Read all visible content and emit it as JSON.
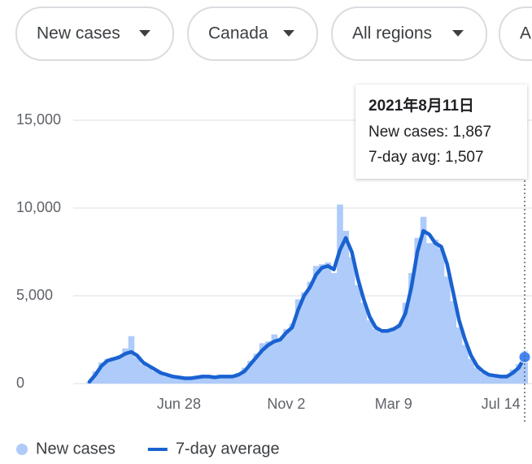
{
  "filters": [
    "New cases",
    "Canada",
    "All regions",
    "A"
  ],
  "chart_data": {
    "type": "bar",
    "categories": [
      null,
      null,
      null,
      null,
      null,
      null,
      null,
      null,
      null,
      null,
      null,
      null,
      null,
      null,
      null,
      "Jun 28",
      null,
      null,
      null,
      null,
      null,
      null,
      null,
      null,
      null,
      null,
      null,
      null,
      null,
      null,
      null,
      null,
      null,
      "Nov 2",
      null,
      null,
      null,
      null,
      null,
      null,
      null,
      null,
      null,
      null,
      null,
      null,
      null,
      null,
      null,
      null,
      null,
      "Mar 9",
      null,
      null,
      null,
      null,
      null,
      null,
      null,
      null,
      null,
      null,
      null,
      null,
      null,
      null,
      null,
      null,
      null,
      "Jul 14",
      null,
      null,
      null,
      null
    ],
    "series": [
      {
        "name": "New cases",
        "type": "bar",
        "color": "#aecbfa",
        "values": [
          100,
          700,
          1200,
          1400,
          1500,
          1600,
          2000,
          2700,
          1500,
          1100,
          900,
          700,
          600,
          400,
          400,
          300,
          300,
          400,
          300,
          500,
          350,
          400,
          500,
          400,
          450,
          600,
          900,
          1300,
          1700,
          2300,
          2400,
          2800,
          2600,
          3100,
          3400,
          4800,
          5200,
          5800,
          6700,
          6800,
          6900,
          6300,
          10200,
          8700,
          7200,
          5600,
          4600,
          3600,
          3100,
          2900,
          3100,
          3200,
          3400,
          4600,
          6300,
          8300,
          9500,
          8000,
          8200,
          7700,
          6100,
          4700,
          3200,
          2200,
          1400,
          900,
          600,
          500,
          400,
          400,
          500,
          800,
          1100,
          1867
        ]
      },
      {
        "name": "7-day average",
        "type": "line",
        "color": "#1a62d0",
        "values": [
          100,
          500,
          1000,
          1300,
          1400,
          1500,
          1700,
          1800,
          1600,
          1200,
          1000,
          800,
          600,
          500,
          400,
          350,
          300,
          300,
          350,
          400,
          400,
          350,
          400,
          400,
          400,
          500,
          700,
          1100,
          1500,
          1900,
          2200,
          2400,
          2500,
          2900,
          3200,
          4200,
          5000,
          5500,
          6200,
          6600,
          6700,
          6500,
          7600,
          8300,
          7500,
          6000,
          4800,
          3800,
          3200,
          3000,
          3000,
          3100,
          3300,
          4000,
          5500,
          7500,
          8700,
          8500,
          8000,
          7800,
          6800,
          5200,
          3600,
          2500,
          1600,
          1000,
          700,
          500,
          450,
          400,
          400,
          600,
          900,
          1507
        ]
      }
    ],
    "ylim": [
      0,
      15000
    ],
    "yticks": [
      0,
      {
        "value": 5000,
        "label": "5,000"
      },
      {
        "value": 10000,
        "label": "10,000"
      },
      {
        "value": 15000,
        "label": "15,000"
      }
    ],
    "grid": true,
    "tooltip": {
      "title": "2021年8月11日",
      "lines": [
        "New cases: 1,867",
        "7-day avg: 1,507"
      ]
    }
  }
}
